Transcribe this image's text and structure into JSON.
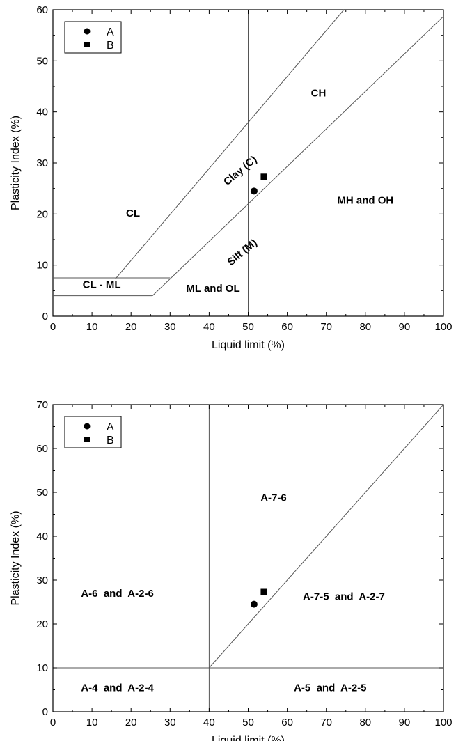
{
  "chart_data": [
    {
      "type": "scatter",
      "xlabel": "Liquid limit (%)",
      "ylabel": "Plasticity Index (%)",
      "xlim": [
        0,
        100
      ],
      "ylim": [
        0,
        60
      ],
      "x_ticks": [
        "0",
        "10",
        "20",
        "30",
        "40",
        "50",
        "60",
        "70",
        "80",
        "90",
        "100"
      ],
      "y_ticks": [
        "0",
        "10",
        "20",
        "30",
        "40",
        "50",
        "60"
      ],
      "series": [
        {
          "name": "A",
          "marker": "circle",
          "x": [
            51.5
          ],
          "y": [
            24.5
          ]
        },
        {
          "name": "B",
          "marker": "square",
          "x": [
            54
          ],
          "y": [
            27.3
          ]
        }
      ],
      "lines": [
        {
          "x": [
            50,
            50
          ],
          "y": [
            0,
            60
          ]
        },
        {
          "x": [
            16,
            74.5
          ],
          "y": [
            7.3,
            60
          ]
        },
        {
          "x": [
            25.5,
            100
          ],
          "y": [
            4,
            58.7
          ]
        },
        {
          "x": [
            0,
            30
          ],
          "y": [
            7.5,
            7.5
          ]
        },
        {
          "x": [
            0,
            25.5
          ],
          "y": [
            4,
            4
          ]
        }
      ],
      "region_labels": [
        {
          "text": "CH",
          "x": 68,
          "y": 43,
          "rotate": 0
        },
        {
          "text": "CL",
          "x": 20.5,
          "y": 19.5,
          "rotate": 0
        },
        {
          "text": "Clay (C)",
          "x": 48.5,
          "y": 28,
          "rotate": -40
        },
        {
          "text": "MH and OH",
          "x": 80,
          "y": 22,
          "rotate": 0
        },
        {
          "text": "Silt (M)",
          "x": 49,
          "y": 12,
          "rotate": -40
        },
        {
          "text": "CL - ML",
          "x": 12.5,
          "y": 5.5,
          "rotate": 0
        },
        {
          "text": "ML and OL",
          "x": 41,
          "y": 4.8,
          "rotate": 0
        }
      ],
      "legend": "top-left"
    },
    {
      "type": "scatter",
      "xlabel": "Liquid limit (%)",
      "ylabel": "Plasticity Index (%)",
      "xlim": [
        0,
        100
      ],
      "ylim": [
        0,
        70
      ],
      "x_ticks": [
        "0",
        "10",
        "20",
        "30",
        "40",
        "50",
        "60",
        "70",
        "80",
        "90",
        "100"
      ],
      "y_ticks": [
        "0",
        "10",
        "20",
        "30",
        "40",
        "50",
        "60",
        "70"
      ],
      "series": [
        {
          "name": "A",
          "marker": "circle",
          "x": [
            51.5
          ],
          "y": [
            24.5
          ]
        },
        {
          "name": "B",
          "marker": "square",
          "x": [
            54
          ],
          "y": [
            27.3
          ]
        }
      ],
      "lines": [
        {
          "x": [
            40,
            40
          ],
          "y": [
            0,
            70
          ]
        },
        {
          "x": [
            0,
            100
          ],
          "y": [
            10,
            10
          ]
        },
        {
          "x": [
            40,
            100
          ],
          "y": [
            10,
            70
          ]
        }
      ],
      "region_labels": [
        {
          "text": "A-7-6",
          "x": 56.5,
          "y": 48,
          "rotate": 0
        },
        {
          "text": "A-6  and  A-2-6",
          "x": 16.5,
          "y": 26.2,
          "rotate": 0
        },
        {
          "text": "A-7-5  and  A-2-7",
          "x": 74.5,
          "y": 25.5,
          "rotate": 0
        },
        {
          "text": "A-4  and  A-2-4",
          "x": 16.5,
          "y": 4.7,
          "rotate": 0
        },
        {
          "text": "A-5  and  A-2-5",
          "x": 71,
          "y": 4.7,
          "rotate": 0
        }
      ],
      "legend": "top-left"
    }
  ]
}
